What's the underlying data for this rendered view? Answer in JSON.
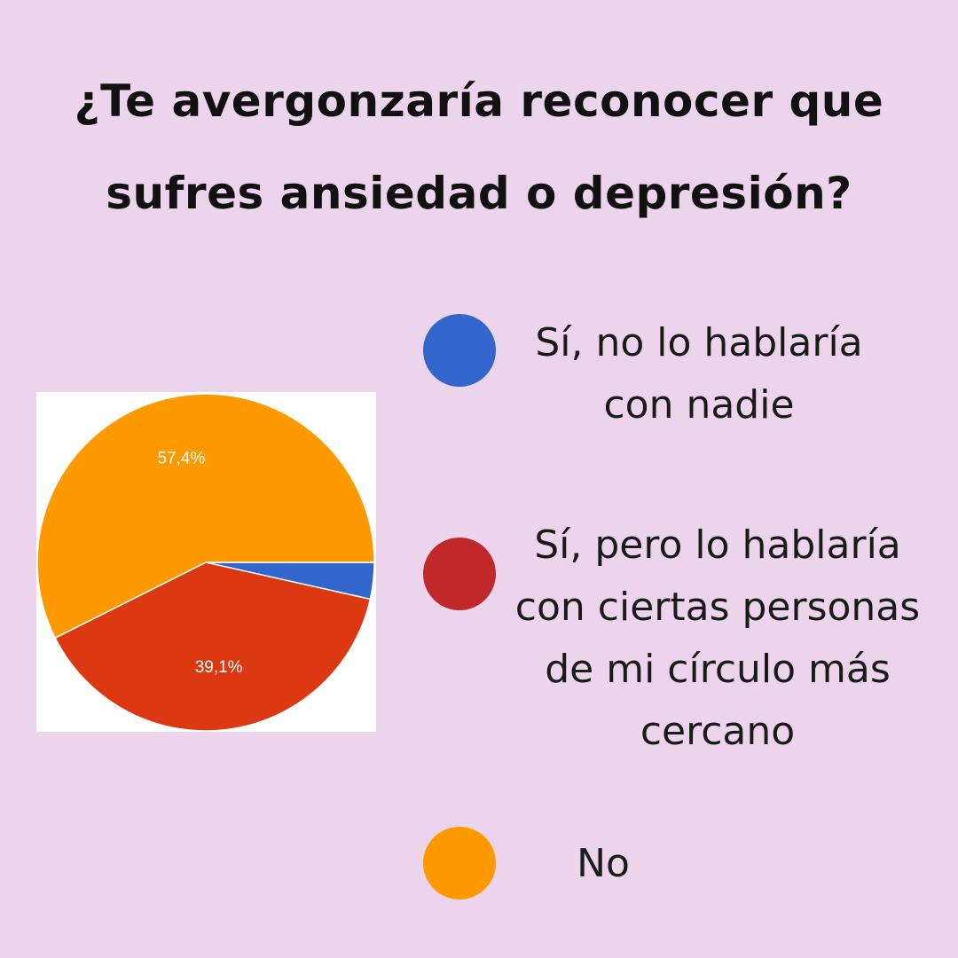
{
  "title": {
    "line1": "¿Te avergonzaría reconocer que",
    "line2": "sufres ansiedad o depresión?"
  },
  "chart_data": {
    "type": "pie",
    "slices": [
      {
        "label": "Sí, no lo hablaría con nadie",
        "value": 3.5,
        "color": "#3366cc"
      },
      {
        "label": "Sí, pero lo hablaría con ciertas personas de mi círculo más cercano",
        "value": 39.1,
        "color": "#dc3912",
        "data_label": "39,1%"
      },
      {
        "label": "No",
        "value": 57.4,
        "color": "#ff9900",
        "data_label": "57,4%"
      }
    ],
    "start_angle_deg": 90,
    "direction": "clockwise"
  },
  "legend": [
    {
      "line1": "Sí, no lo hablaría",
      "line2": "con nadie",
      "color": "#3366cc"
    },
    {
      "line1": "Sí, pero lo hablaría",
      "line2": "con ciertas personas",
      "line3": "de mi círculo más",
      "line4": "cercano",
      "color": "#c0282a"
    },
    {
      "line1": "No",
      "color": "#ff9900"
    }
  ]
}
